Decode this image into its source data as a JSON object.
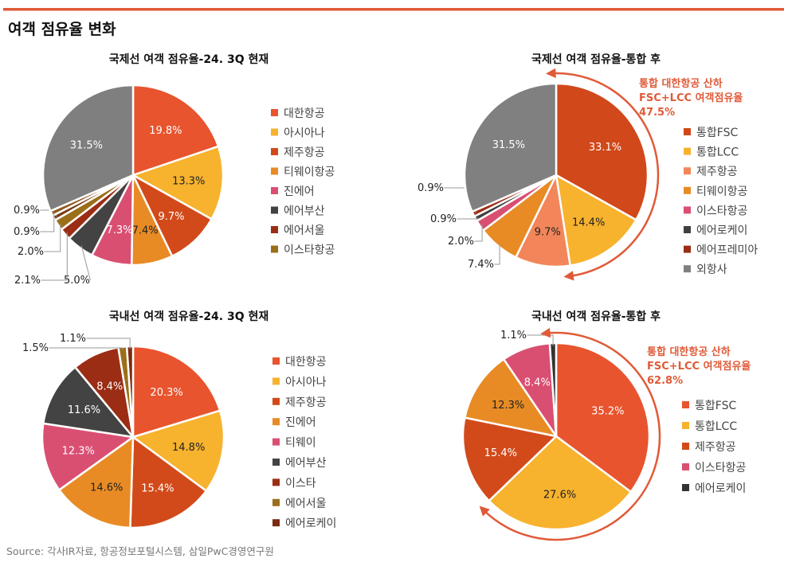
{
  "heading": "여객 점유율 변화",
  "source": "Source: 각사IR자료, 항공정보포털시스템, 삼일PwC경영연구원",
  "accent_color": "#e05a38",
  "chart_data": [
    {
      "type": "pie",
      "title": "국제선 여객 점유율-24. 3Q 현재",
      "unit": "%",
      "slices": [
        {
          "name": "대한항공",
          "value": 19.8,
          "color": "#e8542e"
        },
        {
          "name": "아시아나",
          "value": 13.3,
          "color": "#f7b22e"
        },
        {
          "name": "제주항공",
          "value": 9.7,
          "color": "#d24a1a"
        },
        {
          "name": "티웨이항공",
          "value": 7.4,
          "color": "#e88b25"
        },
        {
          "name": "진에어",
          "value": 7.3,
          "color": "#d94f72"
        },
        {
          "name": "에어부산",
          "value": 5.0,
          "color": "#434343"
        },
        {
          "name": "에어서울",
          "value": 2.1,
          "color": "#9a2d14"
        },
        {
          "name": "이스타항공",
          "value": 2.0,
          "color": "#9b6f1a"
        },
        {
          "name": "",
          "value": 0.9,
          "color": "#7a3a12"
        },
        {
          "name": "",
          "value": 0.9,
          "color": "#8e5a1c"
        },
        {
          "name": "",
          "value": 31.5,
          "color": "#7f7f7f"
        }
      ],
      "legend": [
        "대한항공",
        "아시아나",
        "제주항공",
        "티웨이항공",
        "진에어",
        "에어부산",
        "에어서울",
        "이스타항공"
      ],
      "legend_colors": [
        "#e8542e",
        "#f7b22e",
        "#d24a1a",
        "#e88b25",
        "#d94f72",
        "#434343",
        "#9a2d14",
        "#9b6f1a"
      ]
    },
    {
      "type": "pie",
      "title": "국제선 여객 점유율-통합 후",
      "unit": "%",
      "slices": [
        {
          "name": "통합FSC",
          "value": 33.1,
          "color": "#d1481a"
        },
        {
          "name": "통합LCC",
          "value": 14.4,
          "color": "#f7b22e"
        },
        {
          "name": "제주항공",
          "value": 9.7,
          "color": "#f2865a"
        },
        {
          "name": "티웨이항공",
          "value": 7.4,
          "color": "#e88b25"
        },
        {
          "name": "이스타항공",
          "value": 2.0,
          "color": "#d94f72"
        },
        {
          "name": "에어로케이",
          "value": 0.9,
          "color": "#404040"
        },
        {
          "name": "에어프레미아",
          "value": 0.9,
          "color": "#9a2d14"
        },
        {
          "name": "외항사",
          "value": 31.5,
          "color": "#808080"
        }
      ],
      "legend": [
        "통합FSC",
        "통합LCC",
        "제주항공",
        "티웨이항공",
        "이스타항공",
        "에어로케이",
        "에어프레미아",
        "외항사"
      ],
      "legend_colors": [
        "#d1481a",
        "#f7b22e",
        "#f2865a",
        "#e88b25",
        "#d94f72",
        "#404040",
        "#9a2d14",
        "#808080"
      ],
      "annotation": [
        "통합 대한항공 산하",
        "FSC+LCC 여객점유율",
        "47.5%"
      ]
    },
    {
      "type": "pie",
      "title": "국내선 여객 점유율-24. 3Q 현재",
      "unit": "%",
      "slices": [
        {
          "name": "대한항공",
          "value": 20.3,
          "color": "#e8542e"
        },
        {
          "name": "아시아나",
          "value": 14.8,
          "color": "#f7b22e"
        },
        {
          "name": "제주항공",
          "value": 15.4,
          "color": "#d24a1a"
        },
        {
          "name": "진에어",
          "value": 14.6,
          "color": "#e88b25"
        },
        {
          "name": "티웨이",
          "value": 12.3,
          "color": "#d94f72"
        },
        {
          "name": "에어부산",
          "value": 11.6,
          "color": "#434343"
        },
        {
          "name": "이스타",
          "value": 8.4,
          "color": "#9a2d14"
        },
        {
          "name": "에어서울",
          "value": 1.5,
          "color": "#9b6f1a"
        },
        {
          "name": "에어로케이",
          "value": 1.1,
          "color": "#7a2a10"
        }
      ],
      "legend": [
        "대한항공",
        "아시아나",
        "제주항공",
        "진에어",
        "티웨이",
        "에어부산",
        "이스타",
        "에어서울",
        "에어로케이"
      ],
      "legend_colors": [
        "#e8542e",
        "#f7b22e",
        "#d24a1a",
        "#e88b25",
        "#d94f72",
        "#434343",
        "#9a2d14",
        "#9b6f1a",
        "#7a2a10"
      ]
    },
    {
      "type": "pie",
      "title": "국내선 여객 점유율-통합 후",
      "unit": "%",
      "slices": [
        {
          "name": "통합FSC",
          "value": 35.2,
          "color": "#e8542e"
        },
        {
          "name": "통합LCC",
          "value": 27.6,
          "color": "#f7b22e"
        },
        {
          "name": "제주항공",
          "value": 15.4,
          "color": "#d24a1a"
        },
        {
          "name": "",
          "value": 12.3,
          "color": "#e88b25"
        },
        {
          "name": "이스타항공",
          "value": 8.4,
          "color": "#d94f72"
        },
        {
          "name": "에어로케이",
          "value": 1.1,
          "color": "#333333"
        }
      ],
      "legend": [
        "통합FSC",
        "통합LCC",
        "제주항공",
        "이스타항공",
        "에어로케이"
      ],
      "legend_colors": [
        "#e8542e",
        "#f7b22e",
        "#d24a1a",
        "#d94f72",
        "#333333"
      ],
      "annotation": [
        "통합 대한항공 산하",
        "FSC+LCC 여객점유율",
        "62.8%"
      ]
    }
  ]
}
